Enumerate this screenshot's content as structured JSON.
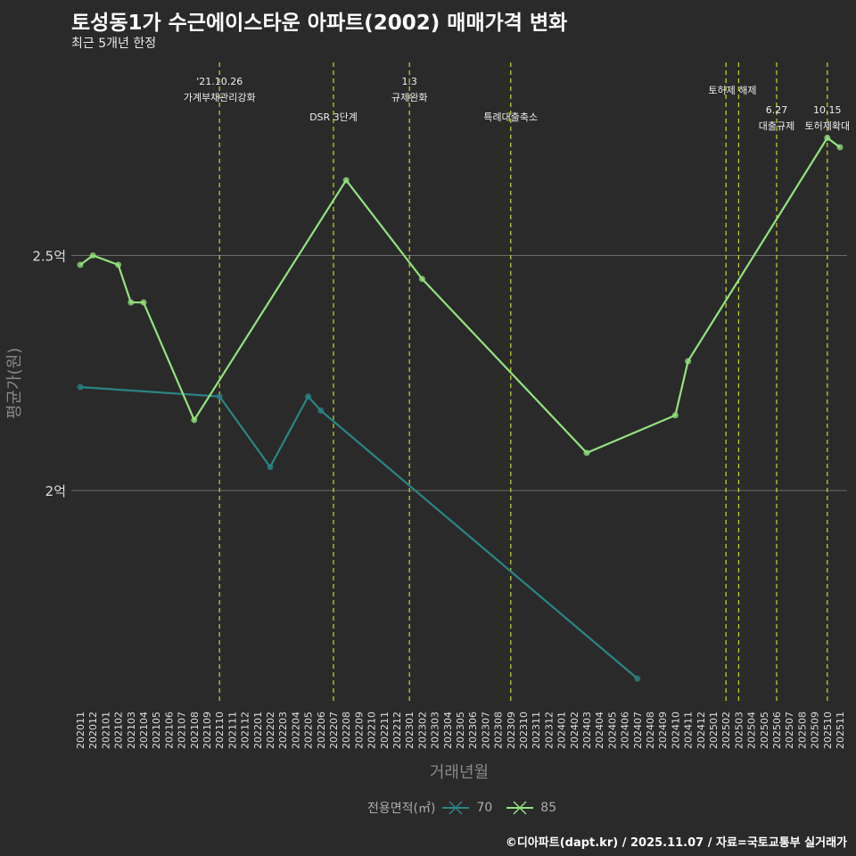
{
  "title": "토성동1가 수근에이스타운 아파트(2002) 매매가격 변화",
  "subtitle": "최근 5개년 한정",
  "caption": "©디아파트(dapt.kr) / 2025.11.07 / 자료=국토교통부 실거래가",
  "chart_data": {
    "type": "line",
    "title": "토성동1가 수근에이스타운 아파트(2002) 매매가격 변화",
    "xlabel": "거래년월",
    "ylabel": "평균가(원)",
    "ylim": [
      1.545,
      2.92
    ],
    "yticks": [
      {
        "value": 2.0,
        "label": "2억"
      },
      {
        "value": 2.5,
        "label": "2.5억"
      }
    ],
    "categories": [
      "202011",
      "202012",
      "202101",
      "202102",
      "202103",
      "202104",
      "202105",
      "202106",
      "202107",
      "202108",
      "202109",
      "202110",
      "202111",
      "202112",
      "202201",
      "202202",
      "202203",
      "202204",
      "202205",
      "202206",
      "202207",
      "202208",
      "202209",
      "202210",
      "202211",
      "202212",
      "202301",
      "202302",
      "202303",
      "202304",
      "202305",
      "202306",
      "202307",
      "202308",
      "202309",
      "202310",
      "202311",
      "202312",
      "202401",
      "202402",
      "202403",
      "202404",
      "202405",
      "202406",
      "202407",
      "202408",
      "202409",
      "202410",
      "202411",
      "202412",
      "202501",
      "202502",
      "202503",
      "202504",
      "202505",
      "202506",
      "202507",
      "202508",
      "202509",
      "202510",
      "202511"
    ],
    "legend": {
      "title": "전용면적(㎡)",
      "position": "bottom"
    },
    "series": [
      {
        "name": "70",
        "color": "#2a8585",
        "points": [
          [
            "202011",
            2.22
          ],
          [
            "202110",
            2.2
          ],
          [
            "202202",
            2.05
          ],
          [
            "202205",
            2.2
          ],
          [
            "202206",
            2.17
          ],
          [
            "202407",
            1.6
          ]
        ]
      },
      {
        "name": "85",
        "color": "#93e27f",
        "points": [
          [
            "202011",
            2.48
          ],
          [
            "202012",
            2.5
          ],
          [
            "202102",
            2.48
          ],
          [
            "202103",
            2.4
          ],
          [
            "202104",
            2.4
          ],
          [
            "202108",
            2.15
          ],
          [
            "202208",
            2.66
          ],
          [
            "202302",
            2.45
          ],
          [
            "202403",
            2.08
          ],
          [
            "202410",
            2.16
          ],
          [
            "202411",
            2.275
          ],
          [
            "202510",
            2.75
          ],
          [
            "202511",
            2.73
          ]
        ]
      }
    ],
    "events": [
      {
        "month": "202110",
        "lines": [
          "'21.10.26",
          "가계부채관리강화"
        ],
        "row": 0
      },
      {
        "month": "202207",
        "lines": [
          "DSR 3단계"
        ],
        "row": 2
      },
      {
        "month": "202301",
        "lines": [
          "1.3",
          "규제완화"
        ],
        "row": 0
      },
      {
        "month": "202309",
        "lines": [
          "특례대출축소"
        ],
        "row": 2
      },
      {
        "month": "202502",
        "lines": [],
        "row": 0
      },
      {
        "month": "202503",
        "lines": [
          "토허제 해제"
        ],
        "row": 0.5,
        "offset": -7
      },
      {
        "month": "202506",
        "lines": [
          "6.27",
          "대출규제"
        ],
        "row": 1.6
      },
      {
        "month": "202510",
        "lines": [
          "10.15",
          "토허제확대"
        ],
        "row": 1.6
      }
    ]
  }
}
